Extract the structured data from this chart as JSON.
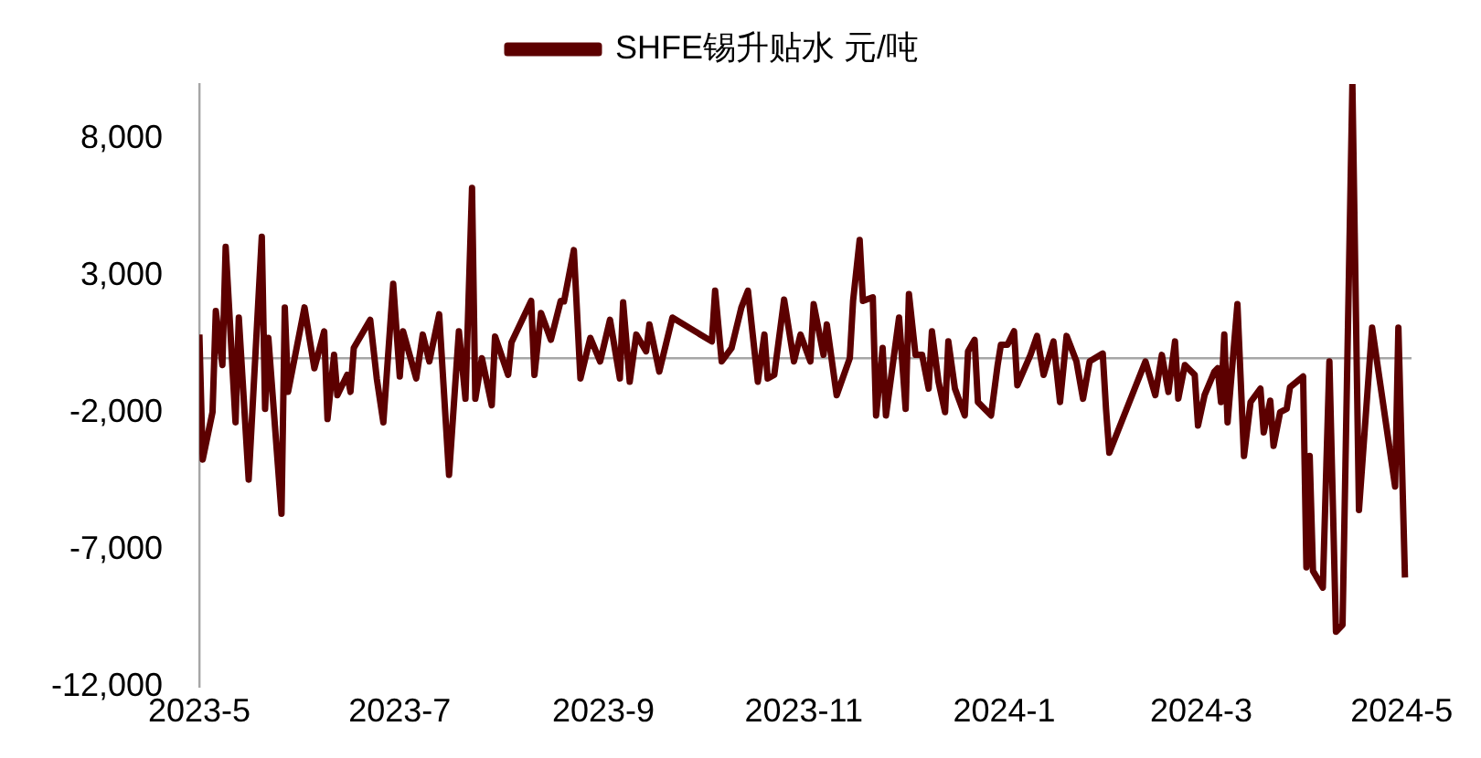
{
  "chart_data": {
    "type": "line",
    "legend": "top",
    "grid": false,
    "marker": "none",
    "line_style": "solid",
    "xlim": [
      "2023-05-01",
      "2024-05-04"
    ],
    "xticks": [
      {
        "value": "2023-05-01",
        "label": "2023-5"
      },
      {
        "value": "2023-07-01",
        "label": "2023-7"
      },
      {
        "value": "2023-09-01",
        "label": "2023-9"
      },
      {
        "value": "2023-11-01",
        "label": "2023-11"
      },
      {
        "value": "2024-01-01",
        "label": "2024-1"
      },
      {
        "value": "2024-03-01",
        "label": "2024-3"
      },
      {
        "value": "2024-05-01",
        "label": "2024-5"
      }
    ],
    "ylim": [
      -12000,
      10000
    ],
    "yticks": [
      {
        "value": 8000,
        "label": "8,000"
      },
      {
        "value": 3000,
        "label": "3,000"
      },
      {
        "value": -2000,
        "label": "-2,000"
      },
      {
        "value": -7000,
        "label": "-7,000"
      },
      {
        "value": -12000,
        "label": "-12,000"
      }
    ],
    "ref_lines": [
      {
        "axis": "y",
        "value": 0,
        "color": "#a6a6a6"
      }
    ],
    "x": [
      "2023-05-01",
      "2023-05-02",
      "2023-05-05",
      "2023-05-06",
      "2023-05-08",
      "2023-05-09",
      "2023-05-12",
      "2023-05-13",
      "2023-05-16",
      "2023-05-20",
      "2023-05-21",
      "2023-05-22",
      "2023-05-26",
      "2023-05-27",
      "2023-05-28",
      "2023-06-02",
      "2023-06-05",
      "2023-06-08",
      "2023-06-09",
      "2023-06-11",
      "2023-06-12",
      "2023-06-15",
      "2023-06-16",
      "2023-06-17",
      "2023-06-22",
      "2023-06-24",
      "2023-06-26",
      "2023-06-29",
      "2023-07-01",
      "2023-07-02",
      "2023-07-06",
      "2023-07-08",
      "2023-07-10",
      "2023-07-13",
      "2023-07-16",
      "2023-07-19",
      "2023-07-21",
      "2023-07-23",
      "2023-07-24",
      "2023-07-26",
      "2023-07-29",
      "2023-07-30",
      "2023-08-03",
      "2023-08-04",
      "2023-08-10",
      "2023-08-11",
      "2023-08-13",
      "2023-08-16",
      "2023-08-19",
      "2023-08-20",
      "2023-08-23",
      "2023-08-25",
      "2023-08-28",
      "2023-08-31",
      "2023-09-03",
      "2023-09-06",
      "2023-09-07",
      "2023-09-09",
      "2023-09-11",
      "2023-09-14",
      "2023-09-15",
      "2023-09-18",
      "2023-09-22",
      "2023-10-04",
      "2023-10-05",
      "2023-10-07",
      "2023-10-10",
      "2023-10-13",
      "2023-10-15",
      "2023-10-18",
      "2023-10-20",
      "2023-10-21",
      "2023-10-23",
      "2023-10-26",
      "2023-10-29",
      "2023-10-31",
      "2023-11-03",
      "2023-11-04",
      "2023-11-07",
      "2023-11-08",
      "2023-11-11",
      "2023-11-15",
      "2023-11-16",
      "2023-11-18",
      "2023-11-19",
      "2023-11-22",
      "2023-11-23",
      "2023-11-25",
      "2023-11-26",
      "2023-11-30",
      "2023-12-02",
      "2023-12-03",
      "2023-12-05",
      "2023-12-07",
      "2023-12-09",
      "2023-12-10",
      "2023-12-12",
      "2023-12-14",
      "2023-12-15",
      "2023-12-17",
      "2023-12-20",
      "2023-12-21",
      "2023-12-23",
      "2023-12-24",
      "2023-12-28",
      "2023-12-30",
      "2023-12-31",
      "2024-01-02",
      "2024-01-04",
      "2024-01-05",
      "2024-01-09",
      "2024-01-11",
      "2024-01-13",
      "2024-01-16",
      "2024-01-18",
      "2024-01-20",
      "2024-01-23",
      "2024-01-25",
      "2024-01-27",
      "2024-01-31",
      "2024-02-01",
      "2024-02-02",
      "2024-02-13",
      "2024-02-16",
      "2024-02-18",
      "2024-02-20",
      "2024-02-22",
      "2024-02-23",
      "2024-02-25",
      "2024-02-28",
      "2024-02-29",
      "2024-03-02",
      "2024-03-05",
      "2024-03-06",
      "2024-03-07",
      "2024-03-08",
      "2024-03-09",
      "2024-03-12",
      "2024-03-14",
      "2024-03-16",
      "2024-03-19",
      "2024-03-20",
      "2024-03-22",
      "2024-03-23",
      "2024-03-25",
      "2024-03-27",
      "2024-03-28",
      "2024-04-01",
      "2024-04-02",
      "2024-04-03",
      "2024-04-04",
      "2024-04-07",
      "2024-04-09",
      "2024-04-11",
      "2024-04-13",
      "2024-04-16",
      "2024-04-18",
      "2024-04-22",
      "2024-04-29",
      "2024-04-30",
      "2024-05-02"
    ],
    "series": [
      {
        "name": "SHFE锡升贴水 元/吨",
        "color": "#5c0000",
        "values": [
          860,
          -3700,
          -1970,
          1720,
          -250,
          4060,
          -2340,
          1480,
          -4430,
          4430,
          -1850,
          740,
          -5670,
          1850,
          -1230,
          1850,
          -370,
          980,
          -2220,
          120,
          -1350,
          -610,
          -1230,
          370,
          1400,
          -740,
          -2340,
          2710,
          -670,
          980,
          -740,
          860,
          -120,
          1600,
          -4260,
          980,
          -1480,
          6210,
          -1480,
          0,
          -1720,
          790,
          -610,
          570,
          2090,
          -610,
          1650,
          670,
          2090,
          2070,
          3940,
          -740,
          740,
          -120,
          1400,
          -740,
          2040,
          -860,
          860,
          250,
          1230,
          -490,
          1480,
          610,
          2460,
          -120,
          370,
          1850,
          2460,
          -860,
          860,
          -740,
          -610,
          2140,
          -120,
          860,
          -120,
          1970,
          120,
          1230,
          -1350,
          0,
          2090,
          4310,
          2090,
          2220,
          -2090,
          370,
          -2090,
          1480,
          -1850,
          2340,
          120,
          120,
          -1110,
          980,
          -860,
          -1970,
          610,
          -1110,
          -2090,
          250,
          670,
          -1600,
          -2090,
          -250,
          490,
          490,
          980,
          -990,
          120,
          810,
          -610,
          610,
          -1600,
          810,
          -120,
          -1480,
          -120,
          170,
          -1850,
          -3450,
          -120,
          -1350,
          120,
          -1230,
          610,
          -1480,
          -250,
          -610,
          -2460,
          -1350,
          -490,
          -370,
          -1600,
          860,
          -2340,
          1970,
          -3570,
          -1600,
          -1110,
          -2710,
          -1550,
          -3200,
          -1970,
          -1850,
          -1060,
          -670,
          -7630,
          -3570,
          -7760,
          -8370,
          -120,
          -9980,
          -9730,
          10000,
          -5540,
          1110,
          -4680,
          1110,
          -8000
        ]
      }
    ]
  }
}
